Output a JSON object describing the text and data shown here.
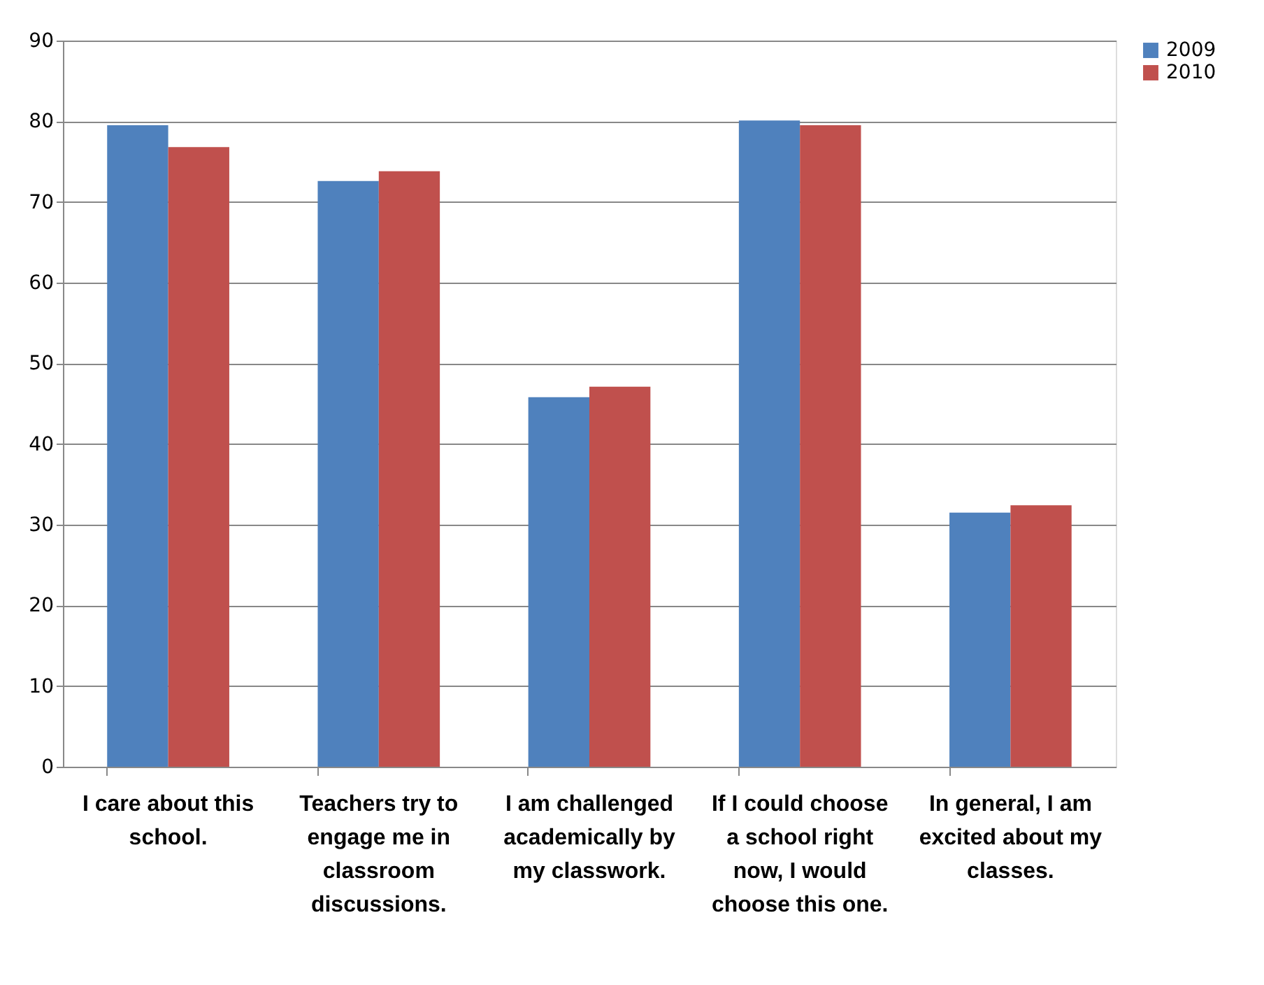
{
  "chart_data": {
    "type": "bar",
    "categories": [
      "I care about this school.",
      "Teachers try to engage me in classroom discussions.",
      "I am challenged academically by my classwork.",
      "If I could choose a school right now, I would choose this one.",
      "In general, I am excited about my classes."
    ],
    "series": [
      {
        "name": "2009",
        "color": "#4f81bd",
        "values": [
          79.5,
          72.6,
          45.8,
          80.1,
          31.5
        ]
      },
      {
        "name": "2010",
        "color": "#c0504d",
        "values": [
          76.8,
          73.8,
          47.1,
          79.5,
          32.4
        ]
      }
    ],
    "ylim": [
      0,
      90
    ],
    "yticks": [
      0,
      10,
      20,
      30,
      40,
      50,
      60,
      70,
      80,
      90
    ],
    "grid": "y",
    "legend": "right"
  }
}
